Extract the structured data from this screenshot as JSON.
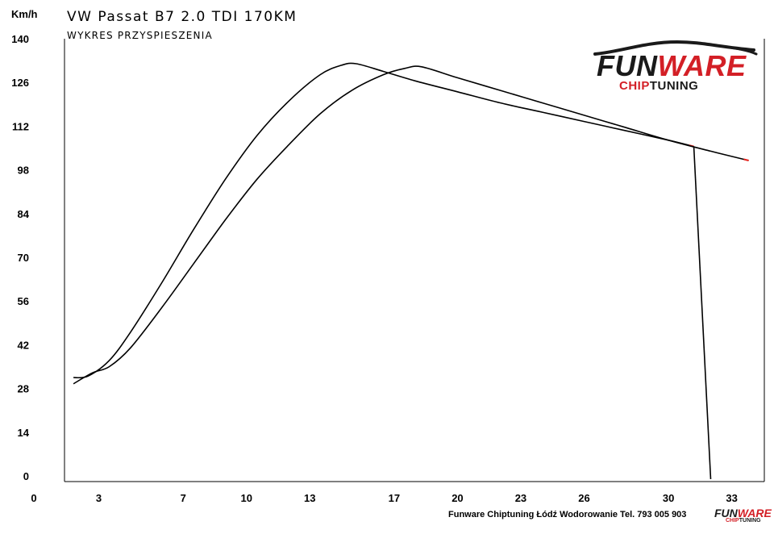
{
  "chart_data": {
    "type": "line",
    "title": "VW Passat B7 2.0 TDI 170KM",
    "subtitle": "WYKRES PRZYSPIESZENIA",
    "ylabel": "Km/h",
    "xlabel": "",
    "x_tick_labels": [
      "0",
      "3",
      "7",
      "10",
      "13",
      "17",
      "20",
      "23",
      "26",
      "30",
      "33"
    ],
    "y_tick_labels": [
      "0",
      "14",
      "28",
      "42",
      "56",
      "70",
      "84",
      "98",
      "112",
      "126",
      "140"
    ],
    "ylim": [
      0,
      140
    ],
    "grid": false,
    "series": [
      {
        "color": "#000000",
        "end_marker_color": "#e8221c",
        "x": [
          1.8,
          2.5,
          3.5,
          4.5,
          6.0,
          7.5,
          9.0,
          10.5,
          12.0,
          13.5,
          14.5,
          15.2,
          16.5,
          18.0,
          20.0,
          22.0,
          24.0,
          26.0,
          28.0,
          30.0,
          31.2
        ],
        "y": [
          31.5,
          32.0,
          37.0,
          46.0,
          62.0,
          79.0,
          95.0,
          109.0,
          120.0,
          128.5,
          131.5,
          132.0,
          129.5,
          126.5,
          123.0,
          119.5,
          116.5,
          113.5,
          110.5,
          107.5,
          105.5
        ]
      },
      {
        "color": "#000000",
        "end_marker_color": "#e8221c",
        "x": [
          1.8,
          2.7,
          3.5,
          4.5,
          6.0,
          7.5,
          9.0,
          10.5,
          12.0,
          13.5,
          15.0,
          16.5,
          17.5,
          18.3,
          20.0,
          22.0,
          24.0,
          26.0,
          28.0,
          30.0,
          32.0,
          33.8
        ],
        "y": [
          29.5,
          33.0,
          35.0,
          41.0,
          54.0,
          68.0,
          82.0,
          95.0,
          106.0,
          116.0,
          123.5,
          128.5,
          130.5,
          131.0,
          127.5,
          123.5,
          119.5,
          115.5,
          111.5,
          107.5,
          104.0,
          101.0
        ]
      }
    ],
    "drop_line": {
      "x": [
        31.2,
        32.0
      ],
      "y": [
        105.5,
        0
      ]
    }
  },
  "footer_text": "Funware Chiptuning Łódź Wodorowanie Tel. 793 005 903",
  "logo": {
    "main_dark": "FUN",
    "main_red": "WARE",
    "sub_red": "CHIP",
    "sub_dark": "TUNING"
  }
}
